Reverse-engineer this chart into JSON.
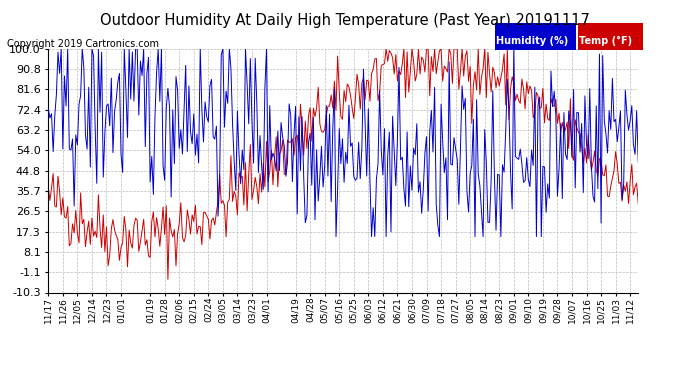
{
  "title": "Outdoor Humidity At Daily High Temperature (Past Year) 20191117",
  "copyright": "Copyright 2019 Cartronics.com",
  "legend_humidity": "Humidity (%)",
  "legend_temp": "Temp (°F)",
  "legend_humidity_bg": "#0000cc",
  "legend_temp_bg": "#cc0000",
  "yticks": [
    100.0,
    90.8,
    81.6,
    72.4,
    63.2,
    54.0,
    44.8,
    35.7,
    26.5,
    17.3,
    8.1,
    -1.1,
    -10.3
  ],
  "x_labels": [
    "11/17",
    "11/26",
    "12/05",
    "12/14",
    "12/23",
    "01/01",
    "01/19",
    "01/28",
    "02/06",
    "02/15",
    "02/24",
    "03/05",
    "03/14",
    "03/23",
    "04/01",
    "04/19",
    "04/28",
    "05/07",
    "05/16",
    "05/25",
    "06/03",
    "06/12",
    "06/21",
    "06/30",
    "07/09",
    "07/18",
    "07/27",
    "08/05",
    "08/14",
    "08/23",
    "09/01",
    "09/10",
    "09/19",
    "09/28",
    "10/07",
    "10/16",
    "10/25",
    "11/03",
    "11/12"
  ],
  "x_label_dates": [
    "2018-11-17",
    "2018-11-26",
    "2018-12-05",
    "2018-12-14",
    "2018-12-23",
    "2019-01-01",
    "2019-01-19",
    "2019-01-28",
    "2019-02-06",
    "2019-02-15",
    "2019-02-24",
    "2019-03-05",
    "2019-03-14",
    "2019-03-23",
    "2019-04-01",
    "2019-04-19",
    "2019-04-28",
    "2019-05-07",
    "2019-05-16",
    "2019-05-25",
    "2019-06-03",
    "2019-06-12",
    "2019-06-21",
    "2019-06-30",
    "2019-07-09",
    "2019-07-18",
    "2019-07-27",
    "2019-08-05",
    "2019-08-14",
    "2019-08-23",
    "2019-09-01",
    "2019-09-10",
    "2019-09-19",
    "2019-09-28",
    "2019-10/07",
    "2019-10-16",
    "2019-10-25",
    "2019-11-03",
    "2019-11-12"
  ],
  "background_color": "#ffffff",
  "plot_bg_color": "#ffffff",
  "grid_color": "#bbbbbb",
  "line_color_humidity": "#0000cc",
  "line_color_temp": "#cc0000",
  "title_fontsize": 10.5,
  "ylabel_fontsize": 8,
  "xlabel_fontsize": 6.5,
  "copyright_fontsize": 7,
  "ymin": -10.3,
  "ymax": 100.0
}
